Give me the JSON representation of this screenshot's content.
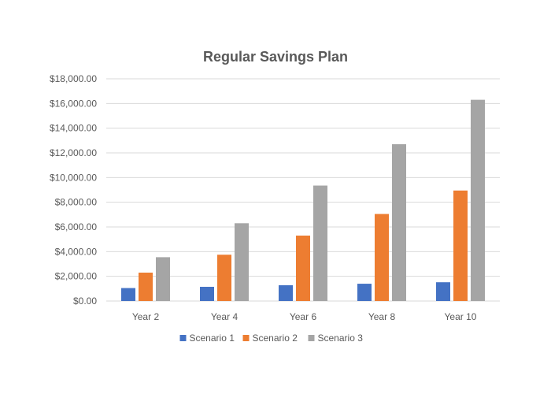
{
  "chart_data": {
    "type": "bar",
    "title": "Regular Savings Plan",
    "xlabel": "",
    "ylabel": "",
    "categories": [
      "Year 2",
      "Year 4",
      "Year 6",
      "Year 8",
      "Year 10"
    ],
    "series": [
      {
        "name": "Scenario 1",
        "color": "#4472C4",
        "values": [
          1050,
          1150,
          1280,
          1400,
          1520
        ]
      },
      {
        "name": "Scenario 2",
        "color": "#ED7D31",
        "values": [
          2300,
          3750,
          5300,
          7050,
          8950
        ]
      },
      {
        "name": "Scenario 3",
        "color": "#A5A5A5",
        "values": [
          3550,
          6300,
          9350,
          12700,
          16300
        ]
      }
    ],
    "ylim": [
      0,
      18000
    ],
    "yticks": [
      0,
      2000,
      4000,
      6000,
      8000,
      10000,
      12000,
      14000,
      16000,
      18000
    ],
    "ytick_labels": [
      "$0.00",
      "$2,000.00",
      "$4,000.00",
      "$6,000.00",
      "$8,000.00",
      "$10,000.00",
      "$12,000.00",
      "$14,000.00",
      "$16,000.00",
      "$18,000.00"
    ],
    "grid": true,
    "legend_position": "bottom",
    "gridline_color": "#D9D9D9",
    "text_color": "#595959"
  }
}
